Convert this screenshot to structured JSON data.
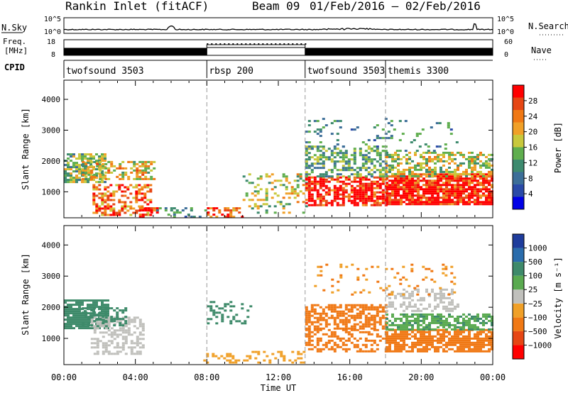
{
  "header": {
    "station": "Rankin Inlet (fitACF)",
    "beam": "Beam 09",
    "date_range": "01/Feb/2016 – 02/Feb/2016"
  },
  "strips": {
    "nsky_label": "N.Sky",
    "nsearch_label": "N.Search",
    "freq_label_1": "Freq.",
    "freq_label_2": "[MHz]",
    "nave_label": "Nave",
    "cpid_label": "CPID",
    "noise_ticks_left": [
      "10^5",
      "10^0"
    ],
    "noise_ticks_right": [
      "10^5",
      "10^0"
    ],
    "freq_ticks": [
      "18",
      "8"
    ],
    "nave_ticks": [
      "60",
      "0"
    ]
  },
  "cpid_segments": [
    {
      "name": "twofsound 3503",
      "start_h": 0.0,
      "end_h": 8.0
    },
    {
      "name": "rbsp 200",
      "start_h": 8.0,
      "end_h": 13.5
    },
    {
      "name": "twofsound 3503",
      "start_h": 13.5,
      "end_h": 18.0
    },
    {
      "name": "themis 3300",
      "start_h": 18.0,
      "end_h": 24.0
    }
  ],
  "axes": {
    "y_label": "Slant Range [km]",
    "y_ticks": [
      "1000",
      "2000",
      "3000",
      "4000"
    ],
    "x_label": "Time UT",
    "x_ticks": [
      "00:00",
      "04:00",
      "08:00",
      "12:00",
      "16:00",
      "20:00",
      "00:00"
    ]
  },
  "power_scale": {
    "label": "Power [dB]",
    "tick_labels": [
      "4",
      "8",
      "12",
      "16",
      "20",
      "24",
      "28"
    ],
    "colors": [
      "#0000e6",
      "#2a4aa8",
      "#3c6e98",
      "#3d8a6e",
      "#5fae4e",
      "#c8c83c",
      "#f0a028",
      "#f07814",
      "#e64614",
      "#ff0000"
    ]
  },
  "velocity_scale": {
    "label": "Velocity [m s⁻¹]",
    "tick_labels": [
      "1000",
      "500",
      "100",
      "25",
      "−25",
      "−100",
      "−500",
      "−1000"
    ],
    "colors": [
      "#1e3c9c",
      "#2a6cac",
      "#3e8a6a",
      "#5aaa50",
      "#c0c0bc",
      "#f0a028",
      "#f07814",
      "#e64614",
      "#ff0000"
    ]
  },
  "chart_data": [
    {
      "type": "heatmap",
      "title": "Power",
      "xlabel": "Time UT",
      "ylabel": "Slant Range [km]",
      "xlim_hours": [
        0,
        24
      ],
      "ylim_km": [
        180,
        4600
      ],
      "colorbar": {
        "label": "Power [dB]",
        "range": [
          0,
          30
        ]
      },
      "vertical_markers_h": [
        8.0,
        13.5,
        18.0
      ],
      "regions": [
        {
          "t0": 0.0,
          "t1": 2.3,
          "r0": 1300,
          "r1": 2250,
          "value": 14,
          "density": 0.7
        },
        {
          "t0": 1.6,
          "t1": 4.8,
          "r0": 250,
          "r1": 1250,
          "value": 24,
          "density": 0.5
        },
        {
          "t0": 4.2,
          "t1": 5.2,
          "r0": 200,
          "r1": 500,
          "value": 28,
          "density": 0.6
        },
        {
          "t0": 1.0,
          "t1": 5.0,
          "r0": 1400,
          "r1": 2000,
          "value": 18,
          "density": 0.45
        },
        {
          "t0": 5.0,
          "t1": 8.0,
          "r0": 200,
          "r1": 500,
          "value": 10,
          "density": 0.25
        },
        {
          "t0": 8.0,
          "t1": 10.0,
          "r0": 200,
          "r1": 500,
          "value": 26,
          "density": 0.55
        },
        {
          "t0": 10.0,
          "t1": 13.5,
          "r0": 300,
          "r1": 1600,
          "value": 16,
          "density": 0.25
        },
        {
          "t0": 13.5,
          "t1": 18.0,
          "r0": 600,
          "r1": 1500,
          "value": 28,
          "density": 0.7
        },
        {
          "t0": 13.5,
          "t1": 18.0,
          "r0": 1500,
          "r1": 2500,
          "value": 12,
          "density": 0.5
        },
        {
          "t0": 18.0,
          "t1": 24.0,
          "r0": 600,
          "r1": 1600,
          "value": 29,
          "density": 0.85
        },
        {
          "t0": 18.0,
          "t1": 24.0,
          "r0": 1500,
          "r1": 2300,
          "value": 16,
          "density": 0.55
        },
        {
          "t0": 13.5,
          "t1": 22.0,
          "r0": 2300,
          "r1": 3400,
          "value": 10,
          "density": 0.1
        }
      ]
    },
    {
      "type": "heatmap",
      "title": "Velocity",
      "xlabel": "Time UT",
      "ylabel": "Slant Range [km]",
      "xlim_hours": [
        0,
        24
      ],
      "ylim_km": [
        180,
        4600
      ],
      "colorbar": {
        "label": "Velocity [m s⁻¹]",
        "range": [
          -1000,
          1000
        ]
      },
      "vertical_markers_h": [
        8.0,
        13.5,
        18.0
      ],
      "regions": [
        {
          "t0": 0.0,
          "t1": 2.5,
          "r0": 1300,
          "r1": 2250,
          "value": 300,
          "density": 0.75
        },
        {
          "t0": 1.5,
          "t1": 4.5,
          "r0": 500,
          "r1": 1700,
          "value": 0,
          "density": 0.5
        },
        {
          "t0": 1.0,
          "t1": 3.5,
          "r0": 1400,
          "r1": 2000,
          "value": 250,
          "density": 0.45
        },
        {
          "t0": 7.8,
          "t1": 13.5,
          "r0": 200,
          "r1": 600,
          "value": -80,
          "density": 0.3
        },
        {
          "t0": 8.0,
          "t1": 10.5,
          "r0": 1500,
          "r1": 2200,
          "value": 250,
          "density": 0.25
        },
        {
          "t0": 13.5,
          "t1": 18.0,
          "r0": 1300,
          "r1": 2100,
          "value": -200,
          "density": 0.65
        },
        {
          "t0": 13.5,
          "t1": 18.0,
          "r0": 600,
          "r1": 1300,
          "value": -150,
          "density": 0.45
        },
        {
          "t0": 18.0,
          "t1": 24.0,
          "r0": 600,
          "r1": 1300,
          "value": -400,
          "density": 0.75
        },
        {
          "t0": 18.0,
          "t1": 24.0,
          "r0": 1300,
          "r1": 1800,
          "value": 90,
          "density": 0.6
        },
        {
          "t0": 18.0,
          "t1": 22.0,
          "r0": 1900,
          "r1": 2600,
          "value": 0,
          "density": 0.4
        },
        {
          "t0": 14.0,
          "t1": 22.0,
          "r0": 2400,
          "r1": 3400,
          "value": -100,
          "density": 0.1
        }
      ]
    }
  ]
}
